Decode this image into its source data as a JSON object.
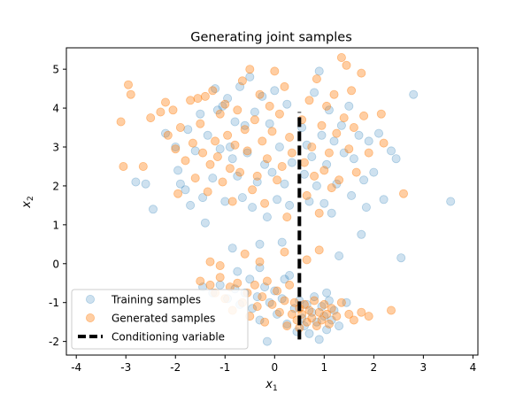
{
  "chart_data": {
    "type": "scatter",
    "title": "Generating joint samples",
    "xlabel": "x",
    "xlabel_sub": "1",
    "ylabel": "x",
    "ylabel_sub": "2",
    "xlim": [
      -4.2,
      4.1
    ],
    "ylim": [
      -2.35,
      5.55
    ],
    "xticks": [
      -4,
      -3,
      -2,
      -1,
      0,
      1,
      2,
      3,
      4
    ],
    "yticks": [
      -2,
      -1,
      0,
      1,
      2,
      3,
      4,
      5
    ],
    "grid": false,
    "legend_position": "lower-left",
    "series": [
      {
        "name": "Training samples",
        "color": "#1f77b4",
        "points": [
          [
            -2.8,
            2.1
          ],
          [
            -2.6,
            2.05
          ],
          [
            -2.45,
            1.4
          ],
          [
            -2.2,
            3.35
          ],
          [
            -2.0,
            3.0
          ],
          [
            -1.95,
            2.4
          ],
          [
            -1.9,
            2.05
          ],
          [
            -1.8,
            1.9
          ],
          [
            -1.75,
            3.45
          ],
          [
            -1.7,
            1.5
          ],
          [
            -1.6,
            2.9
          ],
          [
            -1.5,
            3.85
          ],
          [
            -1.45,
            1.7
          ],
          [
            -1.4,
            1.05
          ],
          [
            -1.35,
            3.3
          ],
          [
            -1.25,
            2.2
          ],
          [
            -1.2,
            4.5
          ],
          [
            -1.15,
            3.95
          ],
          [
            -1.1,
            2.95
          ],
          [
            -1.05,
            4.05
          ],
          [
            -1.0,
            1.6
          ],
          [
            -0.95,
            4.25
          ],
          [
            -0.9,
            3.0
          ],
          [
            -0.85,
            2.7
          ],
          [
            -0.85,
            0.4
          ],
          [
            -0.8,
            3.65
          ],
          [
            -0.75,
            2.25
          ],
          [
            -0.7,
            4.55
          ],
          [
            -0.65,
            1.7
          ],
          [
            -0.6,
            3.55
          ],
          [
            -0.55,
            2.85
          ],
          [
            -0.5,
            4.8
          ],
          [
            -0.45,
            1.45
          ],
          [
            -0.4,
            3.9
          ],
          [
            -0.35,
            2.1
          ],
          [
            -0.3,
            0.5
          ],
          [
            -0.25,
            4.3
          ],
          [
            -0.2,
            2.55
          ],
          [
            -0.15,
            1.2
          ],
          [
            -0.1,
            3.6
          ],
          [
            -0.05,
            2.35
          ],
          [
            0.0,
            4.45
          ],
          [
            0.05,
            1.65
          ],
          [
            0.1,
            3.0
          ],
          [
            0.15,
            0.55
          ],
          [
            0.2,
            2.05
          ],
          [
            0.25,
            4.1
          ],
          [
            0.3,
            1.5
          ],
          [
            0.35,
            2.6
          ],
          [
            0.55,
            3.5
          ],
          [
            0.6,
            2.3
          ],
          [
            0.65,
            3.05
          ],
          [
            0.7,
            1.6
          ],
          [
            0.75,
            2.75
          ],
          [
            0.8,
            4.4
          ],
          [
            0.85,
            2.0
          ],
          [
            0.9,
            4.95
          ],
          [
            0.95,
            3.3
          ],
          [
            1.0,
            1.55
          ],
          [
            1.05,
            2.55
          ],
          [
            1.1,
            3.95
          ],
          [
            1.15,
            1.3
          ],
          [
            1.2,
            3.15
          ],
          [
            1.25,
            2.05
          ],
          [
            1.3,
            0.2
          ],
          [
            1.35,
            3.55
          ],
          [
            1.4,
            2.85
          ],
          [
            1.5,
            4.05
          ],
          [
            1.55,
            1.75
          ],
          [
            1.6,
            2.7
          ],
          [
            1.7,
            3.3
          ],
          [
            1.75,
            0.75
          ],
          [
            1.8,
            2.15
          ],
          [
            1.85,
            1.45
          ],
          [
            1.9,
            3.15
          ],
          [
            2.0,
            2.35
          ],
          [
            2.1,
            3.35
          ],
          [
            2.2,
            1.65
          ],
          [
            2.35,
            2.9
          ],
          [
            2.45,
            2.7
          ],
          [
            2.55,
            0.15
          ],
          [
            2.8,
            4.35
          ],
          [
            3.55,
            1.6
          ],
          [
            -1.45,
            -0.6
          ],
          [
            -1.25,
            -0.75
          ],
          [
            -1.1,
            -0.55
          ],
          [
            -0.95,
            -0.9
          ],
          [
            -0.8,
            -0.65
          ],
          [
            -0.7,
            -1.05
          ],
          [
            -0.6,
            -0.75
          ],
          [
            -0.5,
            -0.4
          ],
          [
            -0.45,
            -1.15
          ],
          [
            -0.35,
            -0.85
          ],
          [
            -0.3,
            -1.45
          ],
          [
            -0.2,
            -0.6
          ],
          [
            -0.15,
            -2.0
          ],
          [
            -0.1,
            -1.0
          ],
          [
            0.0,
            -0.7
          ],
          [
            0.05,
            -1.3
          ],
          [
            0.15,
            -0.9
          ],
          [
            0.25,
            -1.55
          ],
          [
            0.3,
            -0.3
          ],
          [
            0.4,
            -1.15
          ],
          [
            0.45,
            -1.75
          ],
          [
            0.5,
            -0.95
          ],
          [
            0.55,
            -1.4
          ],
          [
            0.6,
            -1.6
          ],
          [
            0.65,
            -1.05
          ],
          [
            0.7,
            -1.8
          ],
          [
            0.75,
            -1.25
          ],
          [
            0.8,
            -0.85
          ],
          [
            0.85,
            -1.5
          ],
          [
            0.9,
            -1.95
          ],
          [
            0.95,
            -1.1
          ],
          [
            1.0,
            -1.35
          ],
          [
            1.05,
            -1.7
          ],
          [
            1.1,
            -0.95
          ],
          [
            1.15,
            -1.45
          ],
          [
            1.2,
            -1.2
          ],
          [
            1.3,
            -1.6
          ],
          [
            1.45,
            -1.0
          ],
          [
            -0.75,
            -0.2
          ],
          [
            -0.3,
            -0.1
          ],
          [
            0.2,
            -0.4
          ],
          [
            1.05,
            -0.75
          ]
        ]
      },
      {
        "name": "Generated samples",
        "color": "#ff7f0e",
        "points": [
          [
            -3.1,
            3.65
          ],
          [
            -3.05,
            2.5
          ],
          [
            -2.95,
            4.6
          ],
          [
            -2.9,
            4.35
          ],
          [
            -2.65,
            2.5
          ],
          [
            -2.5,
            3.75
          ],
          [
            -2.3,
            3.9
          ],
          [
            -2.2,
            4.15
          ],
          [
            -2.15,
            3.3
          ],
          [
            -2.05,
            3.95
          ],
          [
            -2.0,
            2.95
          ],
          [
            -1.95,
            1.8
          ],
          [
            -1.9,
            3.5
          ],
          [
            -1.8,
            2.65
          ],
          [
            -1.7,
            4.2
          ],
          [
            -1.65,
            3.1
          ],
          [
            -1.6,
            2.2
          ],
          [
            -1.55,
            4.25
          ],
          [
            -1.5,
            3.6
          ],
          [
            -1.45,
            2.85
          ],
          [
            -1.4,
            4.3
          ],
          [
            -1.35,
            1.85
          ],
          [
            -1.3,
            2.55
          ],
          [
            -1.25,
            4.45
          ],
          [
            -1.2,
            3.15
          ],
          [
            -1.15,
            2.75
          ],
          [
            -1.1,
            3.85
          ],
          [
            -1.05,
            2.1
          ],
          [
            -1.0,
            4.1
          ],
          [
            -0.95,
            3.3
          ],
          [
            -0.9,
            2.45
          ],
          [
            -0.85,
            1.6
          ],
          [
            -0.8,
            3.05
          ],
          [
            -0.75,
            3.95
          ],
          [
            -0.7,
            2.35
          ],
          [
            -0.65,
            4.7
          ],
          [
            -0.6,
            3.45
          ],
          [
            -0.55,
            2.9
          ],
          [
            -0.5,
            5.0
          ],
          [
            -0.45,
            1.9
          ],
          [
            -0.4,
            3.7
          ],
          [
            -0.35,
            2.25
          ],
          [
            -0.3,
            4.35
          ],
          [
            -0.25,
            3.15
          ],
          [
            -0.2,
            1.55
          ],
          [
            -0.15,
            2.7
          ],
          [
            -0.1,
            4.05
          ],
          [
            -0.05,
            3.4
          ],
          [
            0.0,
            4.95
          ],
          [
            0.05,
            2.15
          ],
          [
            0.1,
            3.85
          ],
          [
            0.15,
            2.5
          ],
          [
            0.2,
            4.55
          ],
          [
            0.25,
            1.2
          ],
          [
            0.3,
            3.25
          ],
          [
            0.35,
            2.85
          ],
          [
            0.55,
            3.7
          ],
          [
            0.6,
            2.6
          ],
          [
            0.65,
            1.75
          ],
          [
            0.7,
            4.2
          ],
          [
            0.75,
            3.0
          ],
          [
            0.8,
            2.25
          ],
          [
            0.85,
            4.75
          ],
          [
            0.9,
            1.3
          ],
          [
            0.95,
            3.55
          ],
          [
            1.0,
            2.4
          ],
          [
            1.05,
            4.05
          ],
          [
            1.1,
            2.85
          ],
          [
            1.15,
            1.95
          ],
          [
            1.2,
            4.35
          ],
          [
            1.25,
            3.35
          ],
          [
            1.3,
            2.15
          ],
          [
            1.35,
            5.3
          ],
          [
            1.4,
            3.75
          ],
          [
            1.45,
            5.1
          ],
          [
            1.5,
            2.95
          ],
          [
            1.55,
            4.45
          ],
          [
            1.6,
            3.5
          ],
          [
            1.65,
            2.35
          ],
          [
            1.75,
            4.9
          ],
          [
            1.8,
            3.8
          ],
          [
            1.9,
            2.85
          ],
          [
            2.15,
            3.85
          ],
          [
            2.2,
            3.1
          ],
          [
            2.6,
            1.8
          ],
          [
            -1.5,
            -0.45
          ],
          [
            -1.3,
            -0.55
          ],
          [
            -1.2,
            -0.75
          ],
          [
            -1.1,
            -0.35
          ],
          [
            -1.0,
            -0.9
          ],
          [
            -0.9,
            -0.6
          ],
          [
            -0.85,
            -1.2
          ],
          [
            -0.75,
            -0.5
          ],
          [
            -0.65,
            -1.0
          ],
          [
            -0.55,
            -0.75
          ],
          [
            -0.5,
            -1.35
          ],
          [
            -0.4,
            -0.55
          ],
          [
            -0.35,
            -1.1
          ],
          [
            -0.25,
            -0.85
          ],
          [
            -0.2,
            -1.5
          ],
          [
            -0.15,
            -0.45
          ],
          [
            -0.05,
            -1.05
          ],
          [
            0.05,
            -0.7
          ],
          [
            0.1,
            -1.25
          ],
          [
            0.2,
            -0.95
          ],
          [
            0.25,
            -1.6
          ],
          [
            0.3,
            -0.55
          ],
          [
            0.35,
            -1.3
          ],
          [
            0.4,
            -1.0
          ],
          [
            0.45,
            -1.45
          ],
          [
            0.5,
            -1.15
          ],
          [
            0.5,
            -1.65
          ],
          [
            0.55,
            -1.3
          ],
          [
            0.6,
            -1.05
          ],
          [
            0.65,
            -1.5
          ],
          [
            0.7,
            -1.2
          ],
          [
            0.75,
            -1.4
          ],
          [
            0.8,
            -0.95
          ],
          [
            0.85,
            -1.6
          ],
          [
            0.9,
            -1.25
          ],
          [
            0.95,
            -1.45
          ],
          [
            1.0,
            -1.05
          ],
          [
            1.05,
            -1.3
          ],
          [
            1.1,
            -1.55
          ],
          [
            1.15,
            -1.15
          ],
          [
            1.25,
            -1.35
          ],
          [
            1.35,
            -1.0
          ],
          [
            1.5,
            -1.3
          ],
          [
            1.6,
            -1.45
          ],
          [
            1.75,
            -1.25
          ],
          [
            1.9,
            -1.35
          ],
          [
            2.35,
            -1.2
          ],
          [
            -1.3,
            0.05
          ],
          [
            -1.1,
            -0.05
          ],
          [
            -0.6,
            0.25
          ],
          [
            -0.3,
            0.05
          ],
          [
            0.2,
            0.3
          ],
          [
            0.65,
            0.1
          ],
          [
            0.9,
            0.35
          ]
        ]
      },
      {
        "name": "Conditioning variable",
        "color": "#000000",
        "type": "vline",
        "x": 0.5,
        "y_range": [
          -1.95,
          3.9
        ],
        "line_style": "dashed"
      }
    ]
  }
}
